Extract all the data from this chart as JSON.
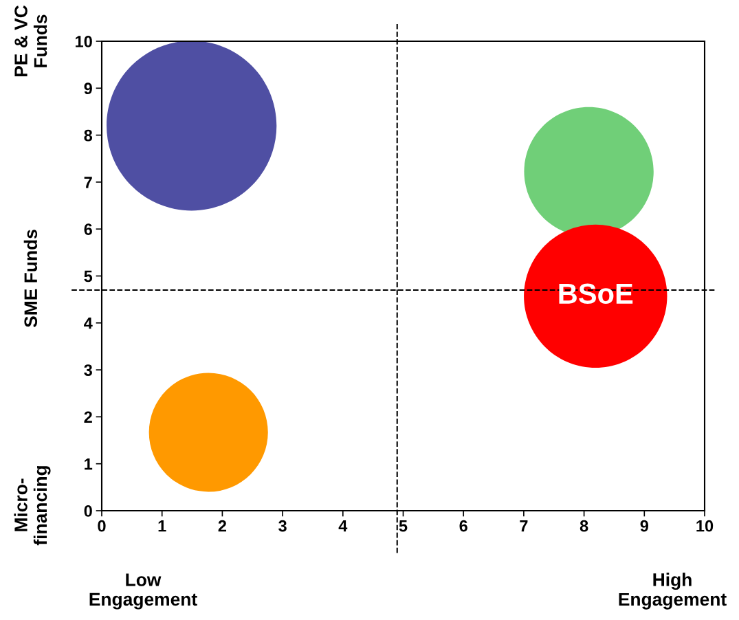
{
  "chart_data": {
    "type": "bubble",
    "x": [
      1.49,
      8.08,
      8.19,
      1.77
    ],
    "values": [
      8.2,
      7.22,
      4.57,
      1.67
    ],
    "sizes": [
      1,
      0.58,
      0.71,
      0.49
    ],
    "colors": [
      "#4f4fa3",
      "#70cf78",
      "#ff0000",
      "#ff9900"
    ],
    "xlim": [
      0,
      10
    ],
    "ylim": [
      0,
      10
    ],
    "xticks": [
      0,
      1,
      2,
      3,
      4,
      5,
      6,
      7,
      8,
      9,
      10
    ],
    "yticks": [
      0,
      1,
      2,
      3,
      4,
      5,
      6,
      7,
      8,
      9,
      10
    ],
    "grid": false,
    "legend": false,
    "marker": "circle",
    "ref_lines": [
      {
        "axis": "x",
        "value": 4.9,
        "color": "#000000",
        "line_style": "dashed"
      },
      {
        "axis": "y",
        "value": 4.7,
        "color": "#000000",
        "line_style": "dashed"
      }
    ],
    "annotations": [
      {
        "text": "BSoE",
        "x": 8.19,
        "y": 4.57
      },
      "PE & VC\nFunds",
      "SME Funds",
      "Micro-\nfinancing",
      "Low\nEngagement",
      "High\nEngagement"
    ]
  }
}
